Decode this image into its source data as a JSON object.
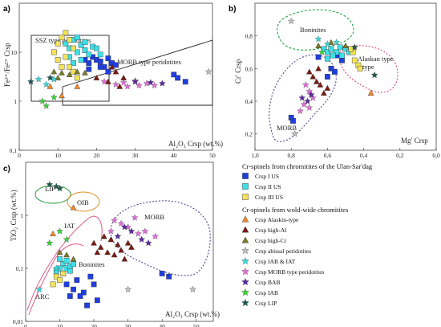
{
  "panels": [
    {
      "id": "a",
      "label": "a)",
      "xlabel": "Al₂O₃ Crsp (wt.%)",
      "ylabel": "Fe³⁺/Fe²⁺ Crsp"
    },
    {
      "id": "b",
      "label": "b)",
      "xlabel": "Mg′ Crsp",
      "ylabel": "Cr′ Crsp"
    },
    {
      "id": "c",
      "label": "c)",
      "xlabel": "Al₂O₃ Crsp (wt.%)",
      "ylabel": "TiO₂ Crsp (wt.%)"
    }
  ],
  "field_labels": {
    "ssz": "SSZ type peridotites",
    "morb_a": "MORB type peridotites",
    "boninites_b": "Boninites",
    "alaskan_b": "Alaskan type",
    "morb_b": "MORB",
    "lip_c": "LIP",
    "oib_c": "OIB",
    "iat_c": "IAT",
    "boninites_c": "Boninites",
    "morb_c": "MORB",
    "arc_c": "ARC"
  },
  "legend": {
    "title1": "Cr-spinels from chromitites of the Ulan-Sar'dag",
    "title2": "Cr-spinels from wold-wide chromitites",
    "items": [
      {
        "label": "Crsp I US",
        "shape": "square",
        "color": "#1f3ee0"
      },
      {
        "label": "Crsp II US",
        "shape": "square",
        "color": "#3ee0e8"
      },
      {
        "label": "Crsp III US",
        "shape": "square",
        "color": "#f2e35a"
      },
      {
        "label": "Crsp Alaskin-type",
        "shape": "triangle",
        "color": "#f08a2a"
      },
      {
        "label": "Crsp high-Al",
        "shape": "triangle",
        "color": "#7a1a12"
      },
      {
        "label": "Crsp high-Cr",
        "shape": "triangle",
        "color": "#7a7a2a"
      },
      {
        "label": "Crsp abissal peridotites",
        "shape": "star",
        "color": "#bdbdbd"
      },
      {
        "label": "Crsp IAB & IAT",
        "shape": "star",
        "color": "#3ad6d6"
      },
      {
        "label": "Crsp  MORB type peridotites",
        "shape": "star",
        "color": "#e070d8"
      },
      {
        "label": "Crsp  BAB",
        "shape": "star",
        "color": "#5a2aa0"
      },
      {
        "label": "Crsp  IAB",
        "shape": "star",
        "color": "#3ad23a"
      },
      {
        "label": "Crsp  LIP",
        "shape": "star",
        "color": "#1e5a52"
      }
    ]
  },
  "chart_data": [
    {
      "type": "scatter",
      "panel": "a",
      "xlabel": "Al₂O₃ Crsp (wt.%)",
      "ylabel": "Fe³⁺/Fe²⁺ Crsp",
      "xlim": [
        0,
        50
      ],
      "ylim": [
        0.1,
        100
      ],
      "yscale": "log",
      "xticks": [
        0,
        10,
        20,
        30,
        40,
        50
      ],
      "yticks": [
        0.1,
        1,
        10
      ],
      "series": [
        {
          "name": "Crsp I US",
          "points": [
            [
              17,
              7
            ],
            [
              18,
              6
            ],
            [
              19,
              8
            ],
            [
              20,
              7
            ],
            [
              21,
              6.5
            ],
            [
              22,
              5
            ],
            [
              23,
              7.5
            ],
            [
              24,
              6
            ],
            [
              25,
              5.5
            ],
            [
              23,
              4
            ],
            [
              21,
              5
            ],
            [
              40,
              3.5
            ],
            [
              41,
              3
            ],
            [
              43,
              2.5
            ],
            [
              18,
              4.5
            ]
          ]
        },
        {
          "name": "Crsp II US",
          "points": [
            [
              12,
              15
            ],
            [
              13,
              12
            ],
            [
              14,
              18
            ],
            [
              15,
              10
            ],
            [
              16,
              14
            ],
            [
              17,
              11
            ],
            [
              18,
              9
            ],
            [
              19,
              13
            ],
            [
              20,
              12
            ],
            [
              13,
              8
            ],
            [
              14,
              6
            ],
            [
              16,
              7
            ],
            [
              21,
              9
            ],
            [
              15,
              20
            ],
            [
              17,
              16
            ]
          ]
        },
        {
          "name": "Crsp III US",
          "points": [
            [
              9,
              10
            ],
            [
              10,
              7
            ],
            [
              11,
              5
            ],
            [
              12,
              8
            ],
            [
              13,
              5
            ],
            [
              14,
              4
            ],
            [
              15,
              3
            ],
            [
              11,
              20
            ],
            [
              12,
              25
            ],
            [
              10,
              15
            ],
            [
              13,
              18
            ],
            [
              14,
              12
            ]
          ]
        },
        {
          "name": "Crsp Alaskin-type",
          "points": [
            [
              8,
              2
            ],
            [
              11,
              1.3
            ],
            [
              15,
              2
            ]
          ]
        },
        {
          "name": "Crsp high-Al",
          "points": [
            [
              20,
              3
            ],
            [
              23,
              2.5
            ],
            [
              25,
              4
            ],
            [
              27,
              3
            ],
            [
              24,
              5
            ],
            [
              26,
              2
            ]
          ]
        },
        {
          "name": "Crsp high-Cr",
          "points": [
            [
              9,
              4
            ],
            [
              11,
              3.8
            ],
            [
              13,
              3.5
            ],
            [
              15,
              4
            ],
            [
              17,
              3.8
            ],
            [
              10,
              3
            ]
          ]
        },
        {
          "name": "Crsp abissal peridotites",
          "points": [
            [
              49,
              4
            ]
          ]
        },
        {
          "name": "Crsp IAB & IAT",
          "points": [
            [
              5,
              2.8
            ],
            [
              7,
              2.2
            ],
            [
              9,
              2.8
            ]
          ]
        },
        {
          "name": "Crsp  MORB type peridotites",
          "points": [
            [
              22,
              2.5
            ],
            [
              25,
              2.2
            ],
            [
              28,
              2
            ],
            [
              31,
              2.1
            ],
            [
              33,
              2.3
            ],
            [
              35,
              2.1
            ],
            [
              27,
              2.4
            ],
            [
              30,
              2.6
            ]
          ]
        },
        {
          "name": "Crsp  BAB",
          "points": [
            [
              30,
              2.5
            ],
            [
              34,
              2.4
            ],
            [
              37,
              2.3
            ]
          ]
        },
        {
          "name": "Crsp  IAB",
          "points": [
            [
              6,
              1
            ],
            [
              7,
              0.8
            ],
            [
              9,
              1.2
            ]
          ]
        },
        {
          "name": "Crsp  LIP",
          "points": [
            [
              3,
              2.5
            ],
            [
              8,
              3
            ]
          ]
        }
      ]
    },
    {
      "type": "scatter",
      "panel": "b",
      "xlabel": "Mg′ Crsp",
      "ylabel": "Cr′ Crsp",
      "xlim": [
        1,
        0
      ],
      "ylim": [
        0.1,
        1.0
      ],
      "xticks": [
        1.0,
        0.8,
        0.6,
        0.4,
        0.2,
        0.0
      ],
      "yticks": [
        0.2,
        0.4,
        0.6,
        0.8
      ],
      "series": [
        {
          "name": "Crsp I US",
          "points": [
            [
              0.65,
              0.67
            ],
            [
              0.6,
              0.7
            ],
            [
              0.55,
              0.68
            ],
            [
              0.58,
              0.6
            ],
            [
              0.52,
              0.65
            ],
            [
              0.8,
              0.3
            ],
            [
              0.79,
              0.28
            ],
            [
              0.6,
              0.55
            ],
            [
              0.56,
              0.58
            ]
          ]
        },
        {
          "name": "Crsp II US",
          "points": [
            [
              0.62,
              0.72
            ],
            [
              0.6,
              0.7
            ],
            [
              0.58,
              0.72
            ],
            [
              0.55,
              0.7
            ],
            [
              0.53,
              0.73
            ],
            [
              0.5,
              0.72
            ],
            [
              0.48,
              0.7
            ],
            [
              0.57,
              0.68
            ],
            [
              0.52,
              0.68
            ],
            [
              0.6,
              0.66
            ]
          ]
        },
        {
          "name": "Crsp III US",
          "points": [
            [
              0.45,
              0.65
            ],
            [
              0.43,
              0.62
            ],
            [
              0.42,
              0.6
            ],
            [
              0.46,
              0.7
            ],
            [
              0.47,
              0.72
            ]
          ]
        },
        {
          "name": "Crsp Alaskin-type",
          "points": [
            [
              0.36,
              0.45
            ]
          ]
        },
        {
          "name": "Crsp high-Al",
          "points": [
            [
              0.7,
              0.58
            ],
            [
              0.68,
              0.55
            ],
            [
              0.66,
              0.52
            ],
            [
              0.64,
              0.5
            ],
            [
              0.62,
              0.45
            ],
            [
              0.6,
              0.48
            ],
            [
              0.65,
              0.6
            ]
          ]
        },
        {
          "name": "Crsp high-Cr",
          "points": [
            [
              0.65,
              0.74
            ],
            [
              0.58,
              0.76
            ],
            [
              0.5,
              0.74
            ]
          ]
        },
        {
          "name": "Crsp abissal peridotites",
          "points": [
            [
              0.78,
              0.2
            ],
            [
              0.8,
              0.89
            ]
          ]
        },
        {
          "name": "Crsp IAB & IAT",
          "points": [
            [
              0.65,
              0.78
            ],
            [
              0.6,
              0.75
            ],
            [
              0.55,
              0.76
            ]
          ]
        },
        {
          "name": "Crsp  MORB type peridotites",
          "points": [
            [
              0.72,
              0.5
            ],
            [
              0.7,
              0.46
            ],
            [
              0.68,
              0.42
            ],
            [
              0.73,
              0.38
            ],
            [
              0.75,
              0.34
            ],
            [
              0.7,
              0.36
            ]
          ]
        },
        {
          "name": "Crsp  BAB",
          "points": [
            [
              0.74,
              0.42
            ],
            [
              0.71,
              0.4
            ],
            [
              0.69,
              0.44
            ]
          ]
        },
        {
          "name": "Crsp  IAB",
          "points": [
            [
              0.63,
              0.7
            ]
          ]
        },
        {
          "name": "Crsp  LIP",
          "points": [
            [
              0.34,
              0.56
            ],
            [
              0.45,
              0.73
            ]
          ]
        }
      ]
    },
    {
      "type": "scatter",
      "panel": "c",
      "xlabel": "Al₂O₃ Crsp (wt.%)",
      "ylabel": "TiO₂ Crsp (wt.%)",
      "xlim": [
        0,
        55
      ],
      "ylim": [
        0.01,
        10
      ],
      "yscale": "log",
      "xticks": [
        0,
        10,
        20,
        30,
        40,
        50
      ],
      "yticks": [
        0.01,
        0.1,
        1
      ],
      "series": [
        {
          "name": "Crsp I US",
          "points": [
            [
              12,
              0.05
            ],
            [
              14,
              0.04
            ],
            [
              15,
              0.06
            ],
            [
              17,
              0.035
            ],
            [
              19,
              0.07
            ],
            [
              20,
              0.05
            ],
            [
              16,
              0.03
            ],
            [
              18,
              0.02
            ],
            [
              21,
              0.025
            ],
            [
              40,
              0.08
            ],
            [
              42,
              0.07
            ],
            [
              13,
              0.03
            ]
          ]
        },
        {
          "name": "Crsp II US",
          "points": [
            [
              10,
              0.15
            ],
            [
              11,
              0.12
            ],
            [
              12,
              0.1
            ],
            [
              13,
              0.09
            ],
            [
              11,
              0.08
            ],
            [
              12,
              0.14
            ],
            [
              13,
              0.11
            ],
            [
              10,
              0.1
            ],
            [
              14,
              0.12
            ],
            [
              9,
              0.09
            ]
          ]
        },
        {
          "name": "Crsp III US",
          "points": [
            [
              8,
              0.05
            ],
            [
              9,
              0.07
            ],
            [
              10,
              0.06
            ],
            [
              11,
              0.08
            ]
          ]
        },
        {
          "name": "Crsp Alaskin-type",
          "points": [
            [
              8,
              0.45
            ],
            [
              14,
              1.4
            ]
          ]
        },
        {
          "name": "Crsp high-Al",
          "points": [
            [
              20,
              0.3
            ],
            [
              22,
              0.25
            ],
            [
              24,
              0.2
            ],
            [
              26,
              0.18
            ],
            [
              28,
              0.22
            ],
            [
              30,
              0.3
            ],
            [
              25,
              0.35
            ],
            [
              23,
              0.4
            ],
            [
              27,
              0.28
            ],
            [
              29,
              0.15
            ],
            [
              21,
              0.2
            ],
            [
              31,
              0.25
            ]
          ]
        },
        {
          "name": "Crsp high-Cr",
          "points": [
            [
              10,
              0.2
            ],
            [
              12,
              0.18
            ],
            [
              14,
              0.15
            ]
          ]
        },
        {
          "name": "Crsp abissal peridotites",
          "points": [
            [
              49,
              0.04
            ],
            [
              30,
              0.04
            ]
          ]
        },
        {
          "name": "Crsp IAB & IAT",
          "points": [
            [
              4,
              0.04
            ],
            [
              9,
              0.1
            ]
          ]
        },
        {
          "name": "Crsp  MORB type peridotites",
          "points": [
            [
              25,
              0.5
            ],
            [
              28,
              0.7
            ],
            [
              30,
              0.6
            ],
            [
              33,
              0.45
            ],
            [
              35,
              0.5
            ],
            [
              38,
              0.4
            ],
            [
              26,
              0.8
            ],
            [
              32,
              0.9
            ]
          ]
        },
        {
          "name": "Crsp  BAB",
          "points": [
            [
              27,
              0.4
            ],
            [
              31,
              0.5
            ],
            [
              34,
              0.35
            ],
            [
              36,
              0.3
            ],
            [
              29,
              0.6
            ]
          ]
        },
        {
          "name": "Crsp  IAB",
          "points": [
            [
              7,
              0.3
            ],
            [
              10,
              0.5
            ],
            [
              12,
              0.35
            ]
          ]
        },
        {
          "name": "Crsp  LIP",
          "points": [
            [
              7,
              3.8
            ],
            [
              9,
              3.5
            ],
            [
              10,
              3.2
            ]
          ]
        }
      ]
    }
  ]
}
